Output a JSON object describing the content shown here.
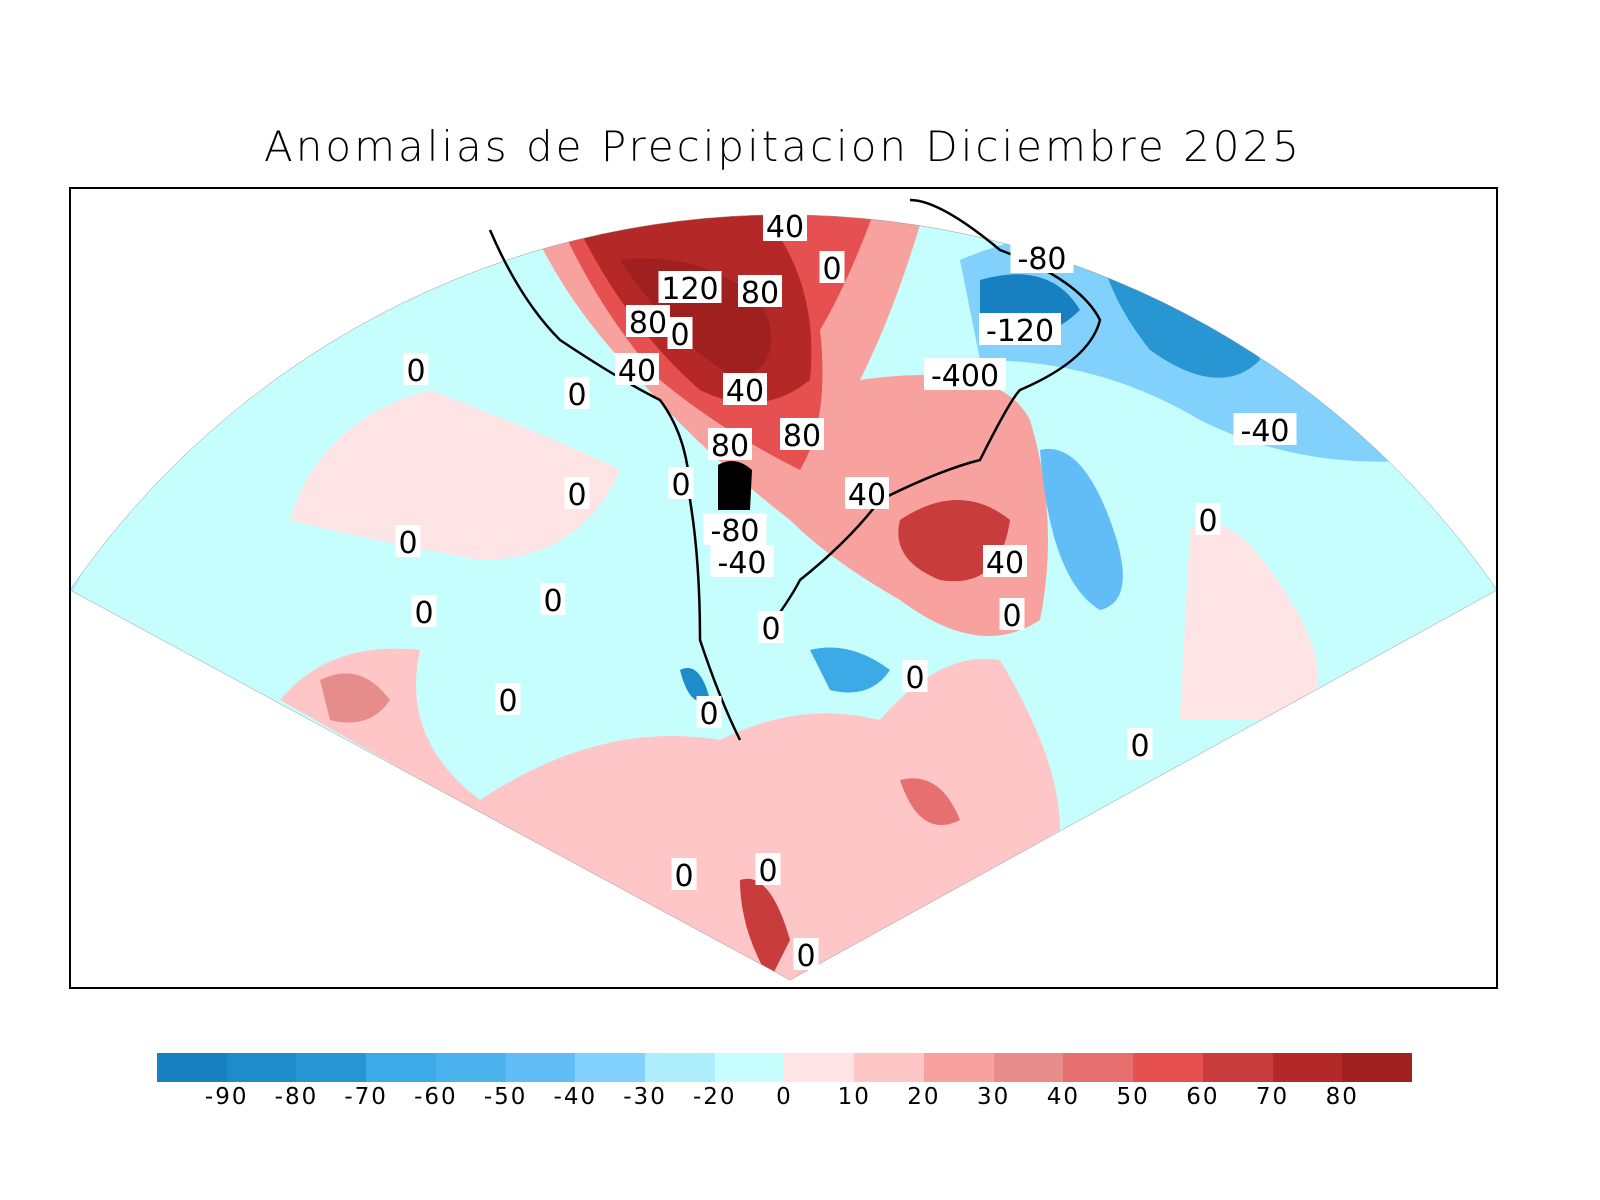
{
  "title": "Anomalias de Precipitacion Diciembre 2025",
  "colorbar": {
    "colors": [
      "#1780c0",
      "#1e8cca",
      "#2996d4",
      "#3caae6",
      "#4bb2ee",
      "#62bcf6",
      "#82d0fc",
      "#aeeefc",
      "#c6fefe",
      "#fee4e4",
      "#fec6c6",
      "#f8a2a0",
      "#e68c8a",
      "#e67070",
      "#e65050",
      "#c83c3c",
      "#b42828",
      "#a02020"
    ],
    "labels": [
      "-90",
      "-80",
      "-70",
      "-60",
      "-50",
      "-40",
      "-30",
      "-20",
      "0",
      "10",
      "20",
      "30",
      "40",
      "50",
      "60",
      "70",
      "80"
    ]
  },
  "map": {
    "contour_labels": [
      "40",
      "0",
      "-80",
      "120",
      "80",
      "80",
      "-120",
      "0",
      "40",
      "-400",
      "40",
      "0",
      "-40",
      "80",
      "80",
      "0",
      "0",
      "40",
      "0",
      "-80",
      "-40",
      "0",
      "40",
      "0",
      "0",
      "0",
      "0",
      "0",
      "0",
      "0",
      "0",
      "0",
      "0",
      "0",
      "0"
    ]
  }
}
